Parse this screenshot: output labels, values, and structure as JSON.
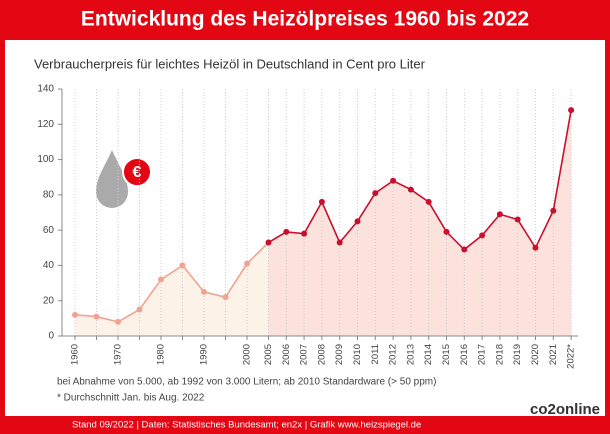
{
  "chart_data": {
    "type": "line",
    "title": "Entwicklung des Heizölpreises 1960 bis 2022",
    "subtitle": "Verbraucherpreis für leichtes Heizöl in Deutschland in Cent pro Liter",
    "icon_symbol": "€",
    "categories": [
      "1960",
      null,
      "1970",
      null,
      "1980",
      null,
      "1990",
      null,
      "2000",
      "2005",
      "2006",
      "2007",
      "2008",
      "2009",
      "2010",
      "2011",
      "2012",
      "2013",
      "2014",
      "2015",
      "2016",
      "2017",
      "2018",
      "2019",
      "2020",
      "2021",
      "2022*"
    ],
    "series": [
      {
        "color": "#f0a392",
        "fill": "#fdf2e8",
        "values": [
          12,
          11,
          8,
          15,
          32,
          40,
          25,
          22,
          41,
          53,
          null,
          null,
          null,
          null,
          null,
          null,
          null,
          null,
          null,
          null,
          null,
          null,
          null,
          null,
          null,
          null,
          null
        ]
      },
      {
        "color": "#c8102e",
        "fill": "#fbe2dd",
        "values": [
          null,
          null,
          null,
          null,
          null,
          null,
          null,
          null,
          null,
          53,
          59,
          58,
          76,
          53,
          65,
          81,
          88,
          83,
          76,
          59,
          49,
          57,
          69,
          66,
          50,
          71,
          128
        ]
      }
    ],
    "ylim": [
      0,
      140
    ],
    "yticks": [
      0,
      20,
      40,
      60,
      80,
      100,
      120,
      140
    ],
    "grid": true,
    "notes": [
      "bei Abnahme von 5.000, ab 1992 von 3.000 Litern; ab 2010 Standardware (> 50 ppm)",
      "* Durchschnitt Jan. bis Aug. 2022"
    ],
    "footer": "Stand 09/2022 | Daten: Statistisches Bundesamt; en2x | Grafik www.heizspiegel.de",
    "logo": "co2online"
  }
}
